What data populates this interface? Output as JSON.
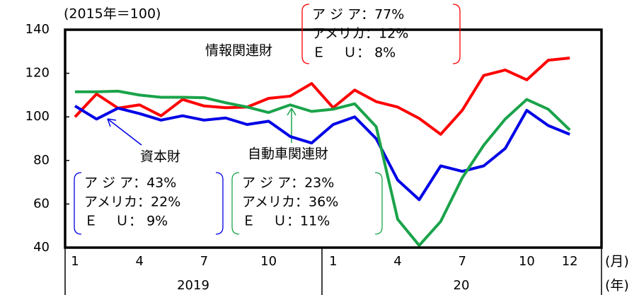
{
  "chart_data": {
    "type": "line",
    "subtitle": "(2015年＝100)",
    "x_unit_label": "(月)",
    "year_unit_label": "(年)",
    "categories": [
      "1",
      null,
      null,
      "4",
      null,
      null,
      "7",
      null,
      null,
      "10",
      null,
      null,
      "1",
      null,
      null,
      "4",
      null,
      null,
      "7",
      null,
      null,
      "10",
      null,
      "12"
    ],
    "years": [
      "2019",
      "20"
    ],
    "ylim": [
      40,
      140
    ],
    "yticks": [
      40,
      60,
      80,
      100,
      120,
      140
    ],
    "series": [
      {
        "name": "情報関連財",
        "color": "#ff0000",
        "values": [
          100,
          110.5,
          104,
          105.5,
          100.5,
          108,
          105,
          104.2,
          104.5,
          108.5,
          109.5,
          115.3,
          104.2,
          112.3,
          107,
          104.5,
          99.3,
          92,
          103,
          119,
          121.5,
          117,
          126,
          127
        ]
      },
      {
        "name": "資本財",
        "color": "#0000e6",
        "values": [
          105,
          99,
          104,
          101.5,
          98.5,
          100.5,
          98.5,
          99.5,
          96.5,
          98,
          91,
          88,
          96.5,
          100,
          90,
          71,
          62,
          77.5,
          75,
          77.5,
          85.5,
          103,
          96,
          92
        ]
      },
      {
        "name": "自動車関連財",
        "color": "#1aa34a",
        "values": [
          111.5,
          111.5,
          111.8,
          110,
          109,
          109,
          108.8,
          106.5,
          104.5,
          102,
          105.5,
          102.5,
          103.5,
          106,
          95.5,
          53,
          41,
          52,
          72,
          87,
          99,
          108,
          103.5,
          94
        ]
      }
    ],
    "annotations": [
      {
        "series": 0,
        "lines": [
          "ア ジ ア：77%",
          "アメリカ：12%",
          "Ｅ　 Ｕ：  8%"
        ]
      },
      {
        "series": 1,
        "lines": [
          "ア ジ ア：43%",
          "アメリカ：22%",
          "Ｅ　 Ｕ：  9%"
        ]
      },
      {
        "series": 2,
        "lines": [
          "ア ジ ア：23%",
          "アメリカ：36%",
          "Ｅ　 Ｕ：11%"
        ]
      }
    ]
  }
}
